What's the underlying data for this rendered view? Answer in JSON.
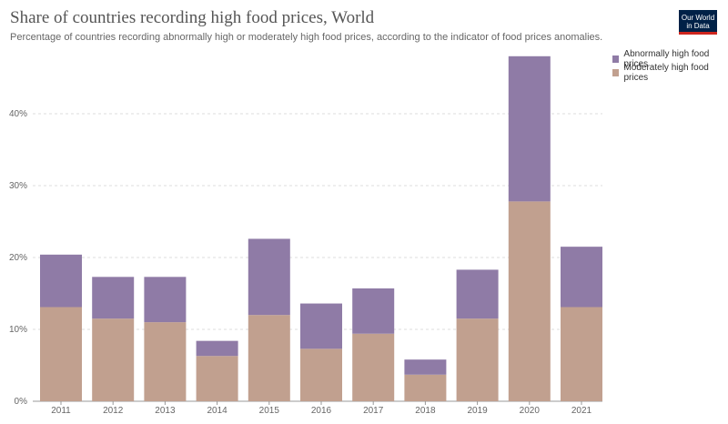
{
  "header": {
    "title": "Share of countries recording high food prices, World",
    "subtitle": "Percentage of countries recording abnormally high or moderately high food prices, according to the indicator of food prices anomalies.",
    "logo_line1": "Our World",
    "logo_line2": "in Data"
  },
  "chart_data": {
    "type": "bar",
    "stacked": true,
    "title": "Share of countries recording high food prices, World",
    "subtitle": "Percentage of countries recording abnormally high or moderately high food prices, according to the indicator of food prices anomalies.",
    "categories": [
      "2011",
      "2012",
      "2013",
      "2014",
      "2015",
      "2016",
      "2017",
      "2018",
      "2019",
      "2020",
      "2021"
    ],
    "series": [
      {
        "name": "Moderately high food prices",
        "color": "#c1a08f",
        "values": [
          13.1,
          11.5,
          11.0,
          6.3,
          12.0,
          7.3,
          9.4,
          3.7,
          11.5,
          27.8,
          13.1
        ]
      },
      {
        "name": "Abnormally high food prices",
        "color": "#8f7ba6",
        "values": [
          7.3,
          5.8,
          6.3,
          2.1,
          10.6,
          6.3,
          6.3,
          2.1,
          6.8,
          20.2,
          8.4
        ]
      }
    ],
    "yticks": [
      "0%",
      "10%",
      "20%",
      "30%",
      "40%"
    ],
    "ylim": [
      0,
      50
    ],
    "grid": true,
    "legend_position": "top-right"
  }
}
